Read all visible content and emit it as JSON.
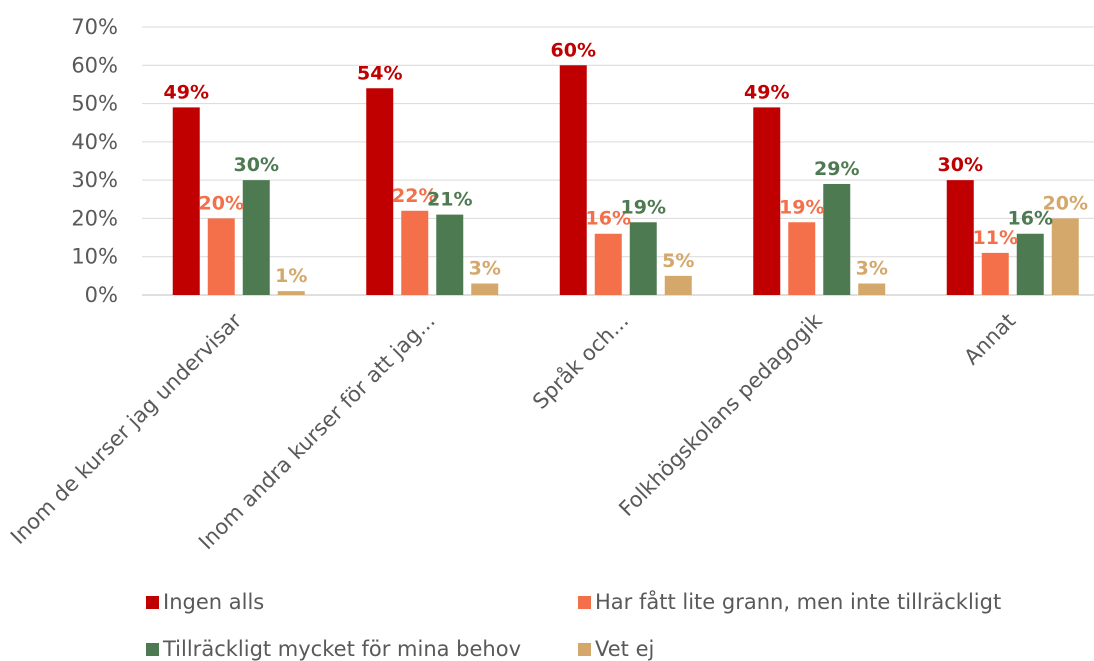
{
  "chart_data": {
    "type": "bar",
    "categories": [
      "Inom de kurser jag undervisar",
      "Inom andra kurser för att jag...",
      "Språk och...",
      "Folkhögskolans pedagogik",
      "Annat"
    ],
    "series": [
      {
        "name": "Ingen alls",
        "color": "#c00000",
        "values": [
          49,
          54,
          60,
          49,
          30
        ],
        "labels": [
          "49%",
          "54%",
          "60%",
          "49%",
          "30%"
        ]
      },
      {
        "name": "Har fått lite grann, men inte tillräckligt",
        "color": "#f4704a",
        "values": [
          20,
          22,
          16,
          19,
          11
        ],
        "labels": [
          "20%",
          "22%",
          "16%",
          "19%",
          "11%"
        ]
      },
      {
        "name": "Tillräckligt mycket för mina behov",
        "color": "#4e7a52",
        "values": [
          30,
          21,
          19,
          29,
          16
        ],
        "labels": [
          "30%",
          "21%",
          "19%",
          "29%",
          "16%"
        ]
      },
      {
        "name": "Vet ej",
        "color": "#d4a76a",
        "values": [
          1,
          3,
          5,
          3,
          20
        ],
        "labels": [
          "1%",
          "3%",
          "5%",
          "3%",
          "20%"
        ]
      }
    ],
    "yticks": [
      "0%",
      "10%",
      "20%",
      "30%",
      "40%",
      "50%",
      "60%",
      "70%"
    ],
    "ylim": [
      0,
      70
    ],
    "grid": true,
    "legend_position": "bottom"
  }
}
